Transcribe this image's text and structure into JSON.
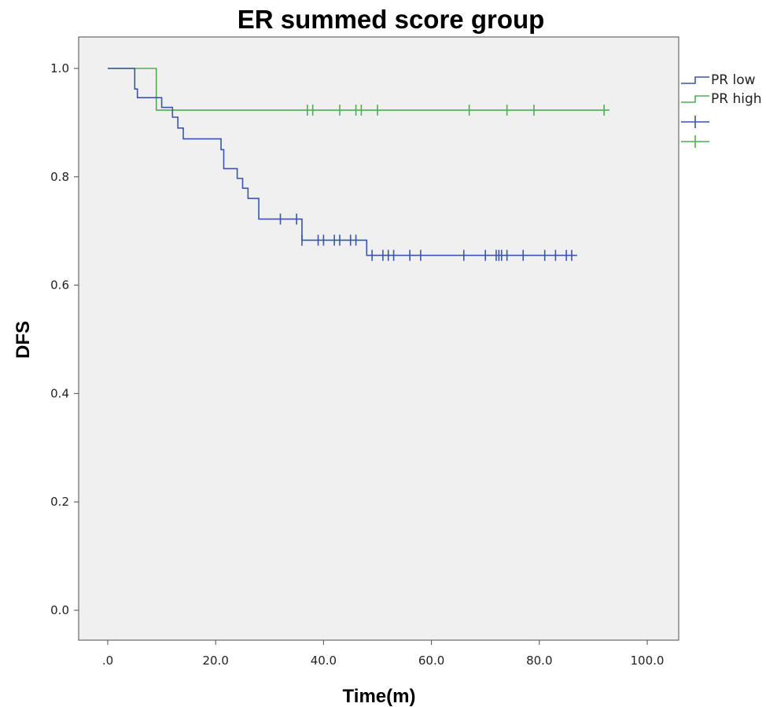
{
  "chart_data": {
    "type": "line",
    "title": "ER summed score group",
    "xlabel": "Time(m)",
    "ylabel": "DFS",
    "xlim": [
      -5,
      105
    ],
    "ylim": [
      -0.04,
      1.07
    ],
    "x_ticks": [
      0,
      20,
      40,
      60,
      80,
      100
    ],
    "x_tick_labels": [
      ".0",
      "20.0",
      "40.0",
      "60.0",
      "80.0",
      "100.0"
    ],
    "y_ticks": [
      0,
      0.2,
      0.4,
      0.6,
      0.8,
      1.0
    ],
    "y_tick_labels": [
      "0.0",
      "0.2",
      "0.4",
      "0.6",
      "0.8",
      "1.0"
    ],
    "grid": false,
    "legend_position": "top-right outside",
    "series": [
      {
        "name": "PR low",
        "color": "#3a55a9",
        "steps": [
          [
            0,
            1.0
          ],
          [
            5,
            0.962
          ],
          [
            5.5,
            0.946
          ],
          [
            9,
            0.946
          ],
          [
            10,
            0.928
          ],
          [
            12,
            0.91
          ],
          [
            13,
            0.89
          ],
          [
            14,
            0.87
          ],
          [
            20,
            0.87
          ],
          [
            21,
            0.85
          ],
          [
            21.5,
            0.815
          ],
          [
            24,
            0.797
          ],
          [
            25,
            0.779
          ],
          [
            26,
            0.76
          ],
          [
            28,
            0.722
          ],
          [
            36,
            0.683
          ],
          [
            48,
            0.655
          ],
          [
            87,
            0.655
          ]
        ],
        "censored": [
          [
            32,
            0.722
          ],
          [
            35,
            0.722
          ],
          [
            36,
            0.683
          ],
          [
            39,
            0.683
          ],
          [
            40,
            0.683
          ],
          [
            42,
            0.683
          ],
          [
            43,
            0.683
          ],
          [
            45,
            0.683
          ],
          [
            46,
            0.683
          ],
          [
            49,
            0.655
          ],
          [
            51,
            0.655
          ],
          [
            52,
            0.655
          ],
          [
            53,
            0.655
          ],
          [
            56,
            0.655
          ],
          [
            58,
            0.655
          ],
          [
            66,
            0.655
          ],
          [
            70,
            0.655
          ],
          [
            72,
            0.655
          ],
          [
            72.5,
            0.655
          ],
          [
            73,
            0.655
          ],
          [
            74,
            0.655
          ],
          [
            77,
            0.655
          ],
          [
            81,
            0.655
          ],
          [
            83,
            0.655
          ],
          [
            85,
            0.655
          ],
          [
            86,
            0.655
          ]
        ]
      },
      {
        "name": "PR high",
        "color": "#4caf50",
        "steps": [
          [
            0,
            1.0
          ],
          [
            9,
            0.923
          ],
          [
            93,
            0.923
          ]
        ],
        "censored": [
          [
            37,
            0.923
          ],
          [
            38,
            0.923
          ],
          [
            43,
            0.923
          ],
          [
            46,
            0.923
          ],
          [
            47,
            0.923
          ],
          [
            50,
            0.923
          ],
          [
            67,
            0.923
          ],
          [
            74,
            0.923
          ],
          [
            79,
            0.923
          ],
          [
            92,
            0.923
          ]
        ]
      }
    ]
  }
}
